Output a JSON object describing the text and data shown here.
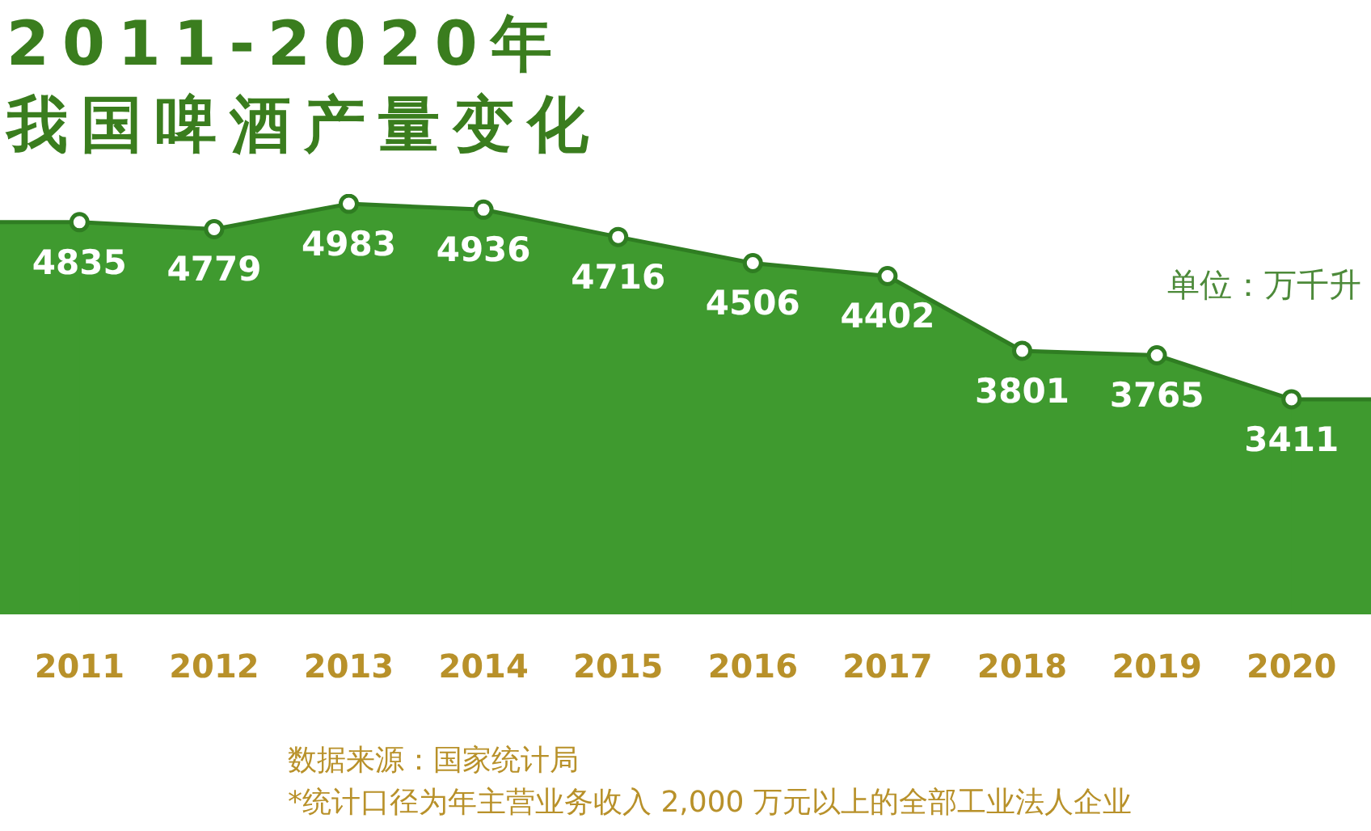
{
  "chart_data": {
    "type": "area",
    "title": "2011-2020年我国啤酒产量变化",
    "categories": [
      "2011",
      "2012",
      "2013",
      "2014",
      "2015",
      "2016",
      "2017",
      "2018",
      "2019",
      "2020"
    ],
    "series": [
      {
        "color": "#3f9a2f",
        "values": [
          4835,
          4779,
          4983,
          4936,
          4716,
          4506,
          4402,
          3801,
          3765,
          3411
        ]
      }
    ],
    "data_labels": true,
    "marker": "circle",
    "grid": false,
    "legend": false,
    "annotations": [
      "单位：万千升",
      "数据来源：国家统计局",
      "*统计口径为年主营业务收入 2,000 万元以上的全部工业法人企业"
    ]
  }
}
